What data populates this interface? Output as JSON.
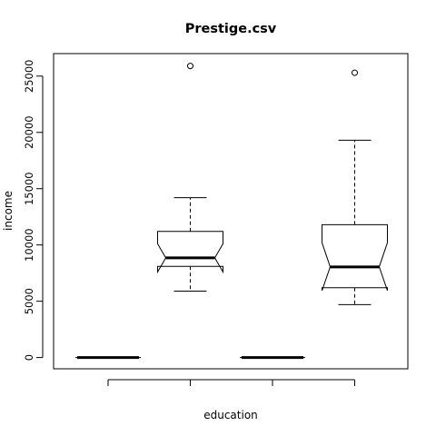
{
  "chart_data": {
    "type": "boxplot",
    "title": "Prestige.csv",
    "xlabel": "education",
    "ylabel": "income",
    "ylim": [
      -1000,
      27000
    ],
    "yticks": [
      0,
      5000,
      10000,
      15000,
      20000,
      25000
    ],
    "xticks_labeled": false,
    "notched": true,
    "grid": false,
    "boxes": [
      {
        "min": 0,
        "q1": 0,
        "median": 0,
        "q3": 0,
        "max": 0,
        "notch_low": 0,
        "notch_high": 0,
        "outliers": []
      },
      {
        "min": 5900,
        "q1": 8100,
        "median": 8850,
        "q3": 11200,
        "max": 14200,
        "notch_low": 7600,
        "notch_high": 10100,
        "outliers": [
          25900
        ]
      },
      {
        "min": 0,
        "q1": 0,
        "median": 0,
        "q3": 0,
        "max": 0,
        "notch_low": 0,
        "notch_high": 0,
        "outliers": []
      },
      {
        "min": 4700,
        "q1": 6200,
        "median": 8050,
        "q3": 11800,
        "max": 19300,
        "notch_low": 5950,
        "notch_high": 10200,
        "outliers": [
          25300
        ]
      }
    ]
  }
}
